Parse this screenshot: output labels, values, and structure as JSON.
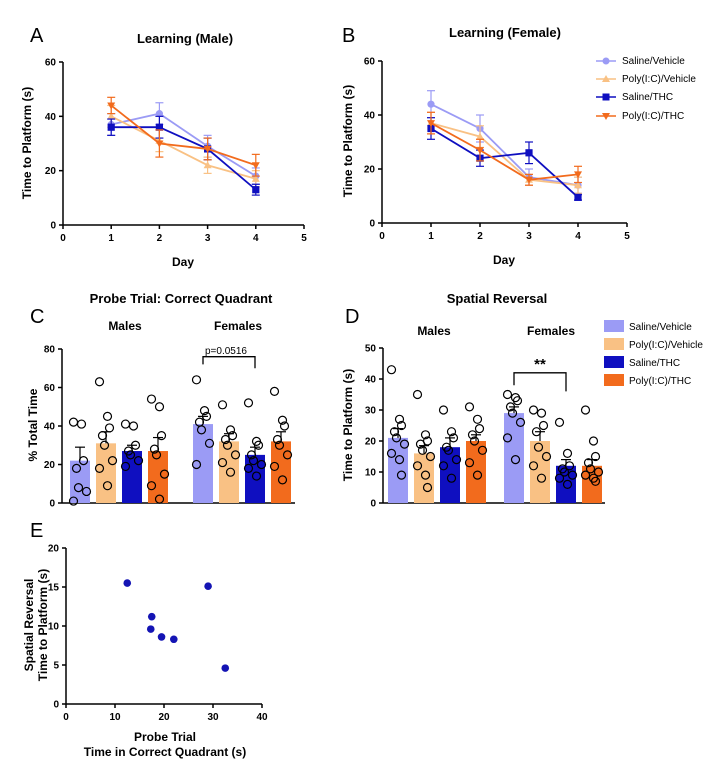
{
  "panel_labels": [
    "A",
    "B",
    "C",
    "D",
    "E"
  ],
  "colors": {
    "saline_vehicle": "#9b9bf5",
    "polyic_vehicle": "#f9c184",
    "saline_thc": "#0f0fc0",
    "polyic_thc": "#f26b1d",
    "scatter": "#1414b4"
  },
  "legend": [
    "Saline/Vehicle",
    "Poly(I:C)/Vehicle",
    "Saline/THC",
    "Poly(I:C)/THC"
  ],
  "chart_data": [
    {
      "panel": "A",
      "type": "line",
      "title": "Learning (Male)",
      "xlabel": "Day",
      "ylabel": "Time to Platform (s)",
      "xlim": [
        0,
        5
      ],
      "ylim": [
        0,
        60
      ],
      "xticks": [
        "0",
        "1",
        "2",
        "3",
        "4",
        "5"
      ],
      "yticks": [
        "0",
        "20",
        "40",
        "60"
      ],
      "x": [
        1,
        2,
        3,
        4
      ],
      "series": [
        {
          "name": "Saline/Vehicle",
          "values": [
            37,
            41,
            29,
            18
          ],
          "err": [
            4,
            4,
            4,
            3
          ]
        },
        {
          "name": "Poly(I:C)/Vehicle",
          "values": [
            40,
            31,
            22,
            17
          ],
          "err": [
            4,
            4,
            3,
            3
          ]
        },
        {
          "name": "Saline/THC",
          "values": [
            36,
            36,
            28,
            13
          ],
          "err": [
            3,
            4,
            4,
            2
          ]
        },
        {
          "name": "Poly(I:C)/THC",
          "values": [
            44,
            30,
            28,
            22
          ],
          "err": [
            3,
            5,
            4,
            4
          ]
        }
      ]
    },
    {
      "panel": "B",
      "type": "line",
      "title": "Learning (Female)",
      "xlabel": "Day",
      "ylabel": "Time to Platform (s)",
      "xlim": [
        0,
        5
      ],
      "ylim": [
        0,
        60
      ],
      "xticks": [
        "0",
        "1",
        "2",
        "3",
        "4",
        "5"
      ],
      "yticks": [
        "0",
        "20",
        "40",
        "60"
      ],
      "x": [
        1,
        2,
        3,
        4
      ],
      "series": [
        {
          "name": "Saline/Vehicle",
          "values": [
            44,
            35,
            17,
            14
          ],
          "err": [
            5,
            5,
            3,
            3
          ]
        },
        {
          "name": "Poly(I:C)/Vehicle",
          "values": [
            37,
            32,
            16,
            14
          ],
          "err": [
            4,
            4,
            2,
            3
          ]
        },
        {
          "name": "Saline/THC",
          "values": [
            35,
            24,
            26,
            9.5
          ],
          "err": [
            4,
            3,
            4,
            1
          ]
        },
        {
          "name": "Poly(I:C)/THC",
          "values": [
            37,
            27,
            16,
            18
          ],
          "err": [
            4,
            4,
            2,
            3
          ]
        }
      ]
    },
    {
      "panel": "C",
      "type": "bar",
      "title": "Probe Trial: Correct Quadrant",
      "ylabel": "% Total Time",
      "ylim": [
        0,
        80
      ],
      "yticks": [
        "0",
        "20",
        "40",
        "60",
        "80"
      ],
      "groups": [
        "Males",
        "Females"
      ],
      "series": [
        {
          "name": "Saline/Vehicle",
          "values": [
            22,
            41
          ],
          "err": [
            7,
            4
          ],
          "points": [
            [
              42,
              41,
              22,
              18,
              8,
              6,
              1
            ],
            [
              64,
              48,
              45,
              42,
              38,
              31,
              20
            ]
          ]
        },
        {
          "name": "Poly(I:C)/Vehicle",
          "values": [
            31,
            32
          ],
          "err": [
            6,
            4
          ],
          "points": [
            [
              63,
              45,
              39,
              35,
              30,
              22,
              18,
              9
            ],
            [
              51,
              38,
              35,
              33,
              30,
              25,
              21,
              16
            ]
          ]
        },
        {
          "name": "Saline/THC",
          "values": [
            27,
            25
          ],
          "err": [
            3,
            4
          ],
          "points": [
            [
              41,
              40,
              30,
              27,
              25,
              22,
              19
            ],
            [
              52,
              32,
              30,
              25,
              22,
              20,
              18,
              14
            ]
          ]
        },
        {
          "name": "Poly(I:C)/THC",
          "values": [
            27,
            32
          ],
          "err": [
            7,
            5
          ],
          "points": [
            [
              54,
              50,
              35,
              28,
              25,
              15,
              9,
              2
            ],
            [
              58,
              43,
              40,
              33,
              30,
              25,
              19,
              12
            ]
          ]
        }
      ],
      "annotation": "p=0.0516"
    },
    {
      "panel": "D",
      "type": "bar",
      "title": "Spatial Reversal",
      "ylabel": "Time to Platform (s)",
      "ylim": [
        0,
        50
      ],
      "yticks": [
        "0",
        "10",
        "20",
        "30",
        "40",
        "50"
      ],
      "groups": [
        "Males",
        "Females"
      ],
      "series": [
        {
          "name": "Saline/Vehicle",
          "values": [
            21,
            29
          ],
          "err": [
            3,
            2
          ],
          "points": [
            [
              43,
              27,
              25,
              23,
              21,
              19,
              16,
              14,
              9
            ],
            [
              35,
              34,
              33,
              31,
              29,
              26,
              21,
              14
            ]
          ]
        },
        {
          "name": "Poly(I:C)/Vehicle",
          "values": [
            16,
            20
          ],
          "err": [
            2.5,
            3
          ],
          "points": [
            [
              35,
              22,
              20,
              19,
              17,
              15,
              12,
              9,
              5
            ],
            [
              30,
              29,
              25,
              23,
              18,
              15,
              12,
              8
            ]
          ]
        },
        {
          "name": "Saline/THC",
          "values": [
            18,
            12
          ],
          "err": [
            3,
            2
          ],
          "points": [
            [
              30,
              23,
              21,
              18,
              17,
              14,
              12,
              8
            ],
            [
              26,
              16,
              12,
              11,
              10,
              9,
              8,
              6
            ]
          ]
        },
        {
          "name": "Poly(I:C)/THC",
          "values": [
            20,
            12
          ],
          "err": [
            2,
            2
          ],
          "points": [
            [
              31,
              27,
              24,
              22,
              20,
              17,
              13,
              9
            ],
            [
              30,
              20,
              15,
              13,
              11,
              10,
              9,
              8,
              7
            ]
          ]
        }
      ],
      "annotation": "**"
    },
    {
      "panel": "E",
      "type": "scatter",
      "xlabel_lines": [
        "Probe Trial",
        "Time in Correct Quadrant (s)"
      ],
      "ylabel_lines": [
        "Spatial Reversal",
        "Time to Platform (s)"
      ],
      "xlim": [
        0,
        40
      ],
      "ylim": [
        0,
        20
      ],
      "xticks": [
        "0",
        "10",
        "20",
        "30",
        "40"
      ],
      "yticks": [
        "0",
        "5",
        "10",
        "15",
        "20"
      ],
      "points": [
        [
          12.5,
          15.5
        ],
        [
          17.5,
          11.2
        ],
        [
          17.3,
          9.6
        ],
        [
          19.5,
          8.6
        ],
        [
          22,
          8.3
        ],
        [
          29,
          15.1
        ],
        [
          32.5,
          4.6
        ]
      ]
    }
  ]
}
